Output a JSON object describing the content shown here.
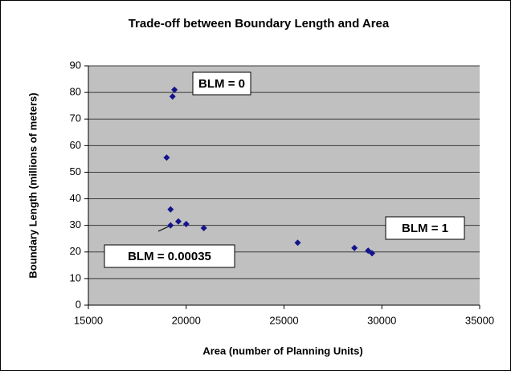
{
  "chart_data": {
    "type": "scatter",
    "title": "Trade-off between Boundary Length and Area",
    "x_label": "Area (number of Planning Units)",
    "y_label": "Boundary Length (millions of meters)",
    "series": [
      {
        "color": "#14148c",
        "x": [
          19400,
          19300,
          19000,
          19200,
          19200,
          19600,
          20000,
          20900,
          25700,
          28600,
          29300,
          29500
        ],
        "values": [
          81,
          78.5,
          55.5,
          36,
          30,
          31.5,
          30.5,
          29,
          23.5,
          21.5,
          20.5,
          19.5
        ]
      }
    ],
    "xlim": [
      15000,
      35000
    ],
    "xticks": [
      15000,
      20000,
      25000,
      30000,
      35000
    ],
    "ylim": [
      0,
      90
    ],
    "yticks": [
      0,
      10,
      20,
      30,
      40,
      50,
      60,
      70,
      80,
      90
    ],
    "grid": true,
    "annotations": [
      "BLM = 0",
      "BLM = 0.00035",
      "BLM = 1"
    ]
  }
}
